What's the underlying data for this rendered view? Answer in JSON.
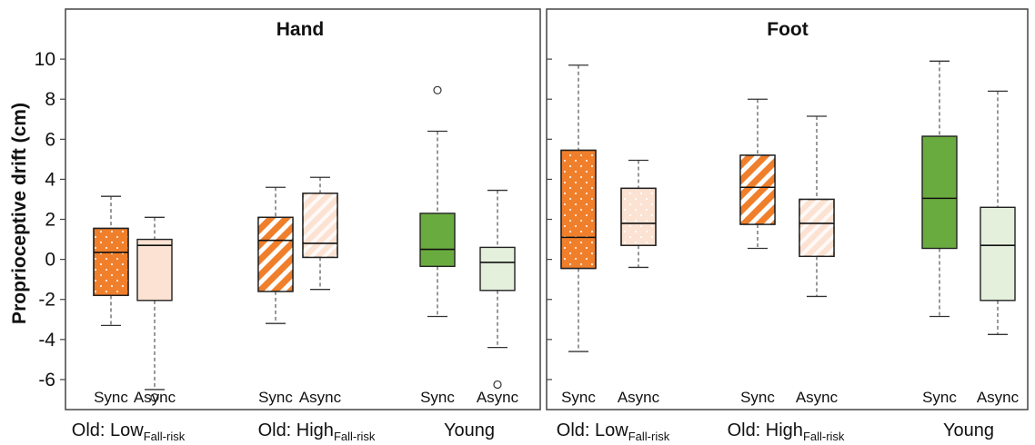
{
  "chart_data": {
    "type": "boxplot",
    "ylabel": "Proprioceptive drift (cm)",
    "ylim": [
      -7.5,
      12.5
    ],
    "yticks": [
      -6,
      -4,
      -2,
      0,
      2,
      4,
      6,
      8,
      10
    ],
    "colors": {
      "orange": "#f07f2b",
      "orange_light": "#fbe2d2",
      "green": "#6aab3f",
      "green_light": "#e4f0dc"
    },
    "panels": [
      {
        "title": "Hand",
        "groups": [
          {
            "label": "Old: Low",
            "sub": "Fall-risk",
            "boxes": [
              {
                "condition": "Sync",
                "color": "orange",
                "pattern": "dots",
                "whisker_low": -3.3,
                "q1": -1.8,
                "median": 0.35,
                "q3": 1.55,
                "whisker_high": 3.15,
                "outliers": []
              },
              {
                "condition": "Async",
                "color": "orange_light",
                "pattern": "none",
                "whisker_low": -6.5,
                "q1": -2.05,
                "median": 0.7,
                "q3": 1.0,
                "whisker_high": 2.1,
                "outliers": [
                  -6.9
                ]
              }
            ]
          },
          {
            "label": "Old: High",
            "sub": "Fall-risk",
            "boxes": [
              {
                "condition": "Sync",
                "color": "orange",
                "pattern": "hatch",
                "whisker_low": -3.2,
                "q1": -1.6,
                "median": 0.95,
                "q3": 2.1,
                "whisker_high": 3.6,
                "outliers": []
              },
              {
                "condition": "Async",
                "color": "orange_light",
                "pattern": "hatch-light",
                "whisker_low": -1.5,
                "q1": 0.1,
                "median": 0.8,
                "q3": 3.3,
                "whisker_high": 4.1,
                "outliers": []
              }
            ]
          },
          {
            "label": "Young",
            "sub": "",
            "boxes": [
              {
                "condition": "Sync",
                "color": "green",
                "pattern": "none",
                "whisker_low": -2.85,
                "q1": -0.35,
                "median": 0.5,
                "q3": 2.3,
                "whisker_high": 6.4,
                "outliers": [
                  8.45
                ]
              },
              {
                "condition": "Async",
                "color": "green_light",
                "pattern": "none",
                "whisker_low": -4.4,
                "q1": -1.55,
                "median": -0.15,
                "q3": 0.6,
                "whisker_high": 3.45,
                "outliers": [
                  -6.25
                ]
              }
            ]
          }
        ]
      },
      {
        "title": "Foot",
        "groups": [
          {
            "label": "Old: Low",
            "sub": "Fall-risk",
            "boxes": [
              {
                "condition": "Sync",
                "color": "orange",
                "pattern": "dots",
                "whisker_low": -4.6,
                "q1": -0.45,
                "median": 1.1,
                "q3": 5.45,
                "whisker_high": 9.7,
                "outliers": []
              },
              {
                "condition": "Async",
                "color": "orange_light",
                "pattern": "dots-light",
                "whisker_low": -0.4,
                "q1": 0.7,
                "median": 1.8,
                "q3": 3.55,
                "whisker_high": 4.95,
                "outliers": []
              }
            ]
          },
          {
            "label": "Old: High",
            "sub": "Fall-risk",
            "boxes": [
              {
                "condition": "Sync",
                "color": "orange",
                "pattern": "hatch",
                "whisker_low": 0.55,
                "q1": 1.75,
                "median": 3.6,
                "q3": 5.2,
                "whisker_high": 8.0,
                "outliers": []
              },
              {
                "condition": "Async",
                "color": "orange_light",
                "pattern": "hatch-light",
                "whisker_low": -1.85,
                "q1": 0.15,
                "median": 1.8,
                "q3": 3.0,
                "whisker_high": 7.15,
                "outliers": []
              }
            ]
          },
          {
            "label": "Young",
            "sub": "",
            "boxes": [
              {
                "condition": "Sync",
                "color": "green",
                "pattern": "none",
                "whisker_low": -2.85,
                "q1": 0.55,
                "median": 3.05,
                "q3": 6.15,
                "whisker_high": 9.9,
                "outliers": []
              },
              {
                "condition": "Async",
                "color": "green_light",
                "pattern": "none",
                "whisker_low": -3.75,
                "q1": -2.05,
                "median": 0.7,
                "q3": 2.6,
                "whisker_high": 8.4,
                "outliers": []
              }
            ]
          }
        ]
      }
    ]
  }
}
